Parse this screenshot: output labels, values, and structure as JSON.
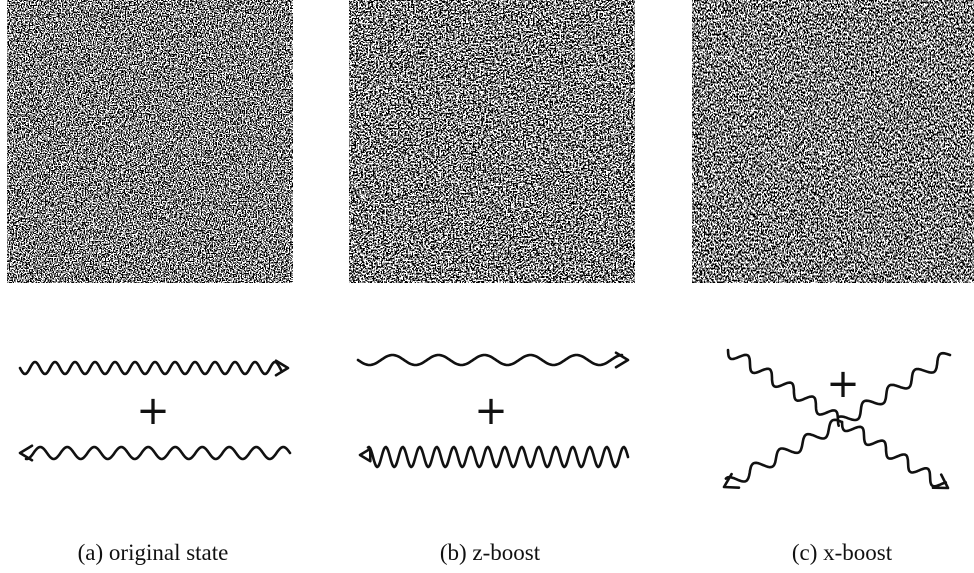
{
  "panels": [
    {
      "plus": "+",
      "caption": "(a) original state"
    },
    {
      "plus": "+",
      "caption": "(b) z-boost"
    },
    {
      "plus": "+",
      "caption": "(c) x-boost"
    }
  ]
}
